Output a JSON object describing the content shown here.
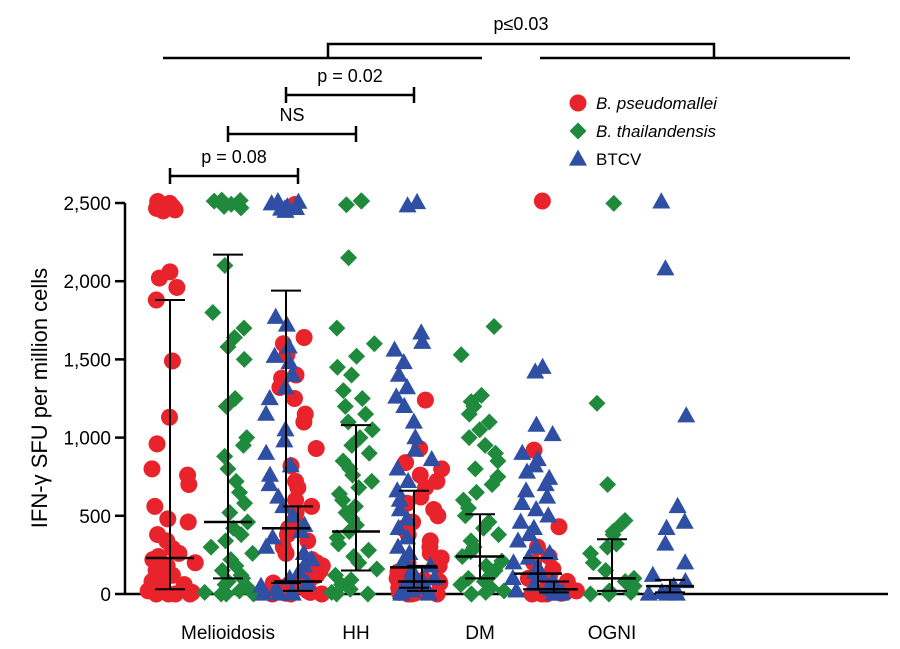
{
  "chart_data": {
    "type": "scatter",
    "ylabel": "IFN-γ SFU per million cells",
    "ylim": [
      0,
      2500
    ],
    "yticks": [
      0,
      500,
      1000,
      1500,
      2000,
      2500
    ],
    "ytick_labels": [
      "0",
      "500",
      "1,000",
      "1,500",
      "2,000",
      "2,500"
    ],
    "categories": [
      "Melioidosis",
      "HH",
      "DM",
      "OGNI"
    ],
    "series": [
      {
        "name": "B. pseudomallei",
        "label_italic": true,
        "color": "#e8232b",
        "marker": "circle",
        "groups": [
          {
            "median": 230,
            "q1": 30,
            "q3": 1880,
            "values": [
              2500,
              2500,
              2490,
              2480,
              2470,
              2460,
              2440,
              2060,
              2020,
              1960,
              1880,
              1490,
              1130,
              960,
              800,
              760,
              700,
              560,
              480,
              460,
              380,
              340,
              290,
              260,
              240,
              220,
              200,
              180,
              150,
              120,
              100,
              80,
              60,
              40,
              30,
              20,
              10,
              5,
              0,
              0,
              0,
              0
            ]
          },
          {
            "median": 80,
            "q1": 20,
            "q3": 560,
            "values": [
              2500,
              1640,
              1600,
              1530,
              1400,
              1380,
              1320,
              1250,
              1150,
              1100,
              930,
              820,
              720,
              680,
              600,
              560,
              520,
              460,
              420,
              380,
              340,
              300,
              260,
              220,
              200,
              180,
              150,
              120,
              100,
              90,
              80,
              70,
              60,
              50,
              40,
              30,
              20,
              10,
              5,
              0,
              0,
              0
            ]
          },
          {
            "median": 80,
            "q1": 20,
            "q3": 180,
            "values": [
              1240,
              930,
              840,
              800,
              760,
              720,
              680,
              620,
              580,
              540,
              500,
              460,
              420,
              380,
              340,
              300,
              260,
              230,
              200,
              180,
              160,
              140,
              120,
              100,
              90,
              80,
              70,
              60,
              50,
              40,
              30,
              20,
              10,
              5,
              0,
              0,
              0
            ]
          },
          {
            "median": 30,
            "q1": 10,
            "q3": 80,
            "values": [
              2500,
              920,
              430,
              300,
              240,
              200,
              160,
              120,
              100,
              80,
              60,
              40,
              30,
              20,
              10,
              5,
              0,
              0,
              0
            ]
          }
        ]
      },
      {
        "name": "B. thailandensis",
        "label_italic": true,
        "color": "#1f8a3c",
        "marker": "diamond",
        "groups": [
          {
            "median": 460,
            "q1": 100,
            "q3": 2170,
            "values": [
              2500,
              2500,
              2500,
              2490,
              2480,
              2470,
              2100,
              1800,
              1700,
              1640,
              1580,
              1500,
              1250,
              1200,
              1000,
              950,
              880,
              800,
              720,
              650,
              580,
              520,
              460,
              420,
              380,
              340,
              300,
              260,
              220,
              180,
              150,
              120,
              100,
              80,
              60,
              40,
              20,
              10,
              0,
              0,
              0
            ]
          },
          {
            "median": 400,
            "q1": 150,
            "q3": 1080,
            "values": [
              2500,
              2500,
              2490,
              2150,
              1700,
              1600,
              1520,
              1450,
              1400,
              1300,
              1250,
              1200,
              1150,
              1100,
              1050,
              1000,
              950,
              900,
              850,
              800,
              760,
              720,
              680,
              640,
              600,
              560,
              520,
              480,
              440,
              400,
              360,
              320,
              280,
              240,
              200,
              160,
              120,
              90,
              60,
              30,
              10,
              0,
              0
            ]
          },
          {
            "median": 240,
            "q1": 100,
            "q3": 510,
            "values": [
              1710,
              1530,
              1270,
              1230,
              1200,
              1150,
              1100,
              1050,
              1000,
              950,
              900,
              850,
              800,
              750,
              700,
              650,
              600,
              550,
              500,
              460,
              420,
              380,
              340,
              300,
              270,
              240,
              210,
              180,
              150,
              120,
              100,
              80,
              60,
              40,
              20,
              10,
              0,
              0
            ]
          },
          {
            "median": 100,
            "q1": 20,
            "q3": 350,
            "values": [
              2500,
              1220,
              700,
              470,
              450,
              400,
              380,
              320,
              300,
              260,
              200,
              150,
              100,
              80,
              50,
              20,
              10,
              0,
              0
            ]
          }
        ]
      },
      {
        "name": "BTCV",
        "label_italic": false,
        "color": "#2e4fa3",
        "marker": "triangle",
        "groups": [
          {
            "median": 420,
            "q1": 70,
            "q3": 1940,
            "values": [
              2500,
              2500,
              2490,
              2480,
              2470,
              2460,
              2450,
              2440,
              1770,
              1720,
              1580,
              1520,
              1480,
              1400,
              1320,
              1250,
              1150,
              1050,
              980,
              900,
              820,
              760,
              700,
              620,
              560,
              500,
              440,
              400,
              360,
              300,
              260,
              220,
              180,
              140,
              100,
              70,
              50,
              30,
              10,
              0,
              0,
              0
            ]
          },
          {
            "median": 170,
            "q1": 40,
            "q3": 660,
            "values": [
              2500,
              2490,
              1670,
              1610,
              1560,
              1480,
              1400,
              1320,
              1260,
              1200,
              1100,
              1000,
              920,
              860,
              800,
              720,
              660,
              600,
              540,
              480,
              420,
              360,
              300,
              260,
              220,
              180,
              150,
              120,
              100,
              80,
              60,
              40,
              20,
              10,
              0,
              0
            ]
          },
          {
            "median": 130,
            "q1": 30,
            "q3": 230,
            "values": [
              1450,
              1420,
              1080,
              1020,
              900,
              860,
              820,
              780,
              740,
              700,
              660,
              620,
              580,
              540,
              500,
              460,
              420,
              380,
              340,
              300,
              260,
              230,
              200,
              170,
              140,
              120,
              100,
              80,
              60,
              40,
              30,
              20,
              10,
              0,
              0
            ]
          },
          {
            "median": 50,
            "q1": 10,
            "q3": 90,
            "values": [
              2500,
              2080,
              1140,
              560,
              460,
              420,
              320,
              200,
              120,
              80,
              50,
              30,
              10,
              0,
              0,
              0
            ]
          }
        ]
      }
    ],
    "annotations": [
      {
        "text": "p = 0.08",
        "from": [
          0,
          0
        ],
        "to": [
          1,
          0
        ]
      },
      {
        "text": "NS",
        "from": [
          0,
          1
        ],
        "to": [
          1,
          1
        ]
      },
      {
        "text": "p = 0.02",
        "from": [
          0,
          2
        ],
        "to": [
          1,
          2
        ]
      },
      {
        "text": "p≤0.03",
        "from": "Melioidosis+HH",
        "to": "DM+OGNI"
      }
    ],
    "legend_position": "top-right",
    "grid": false
  }
}
